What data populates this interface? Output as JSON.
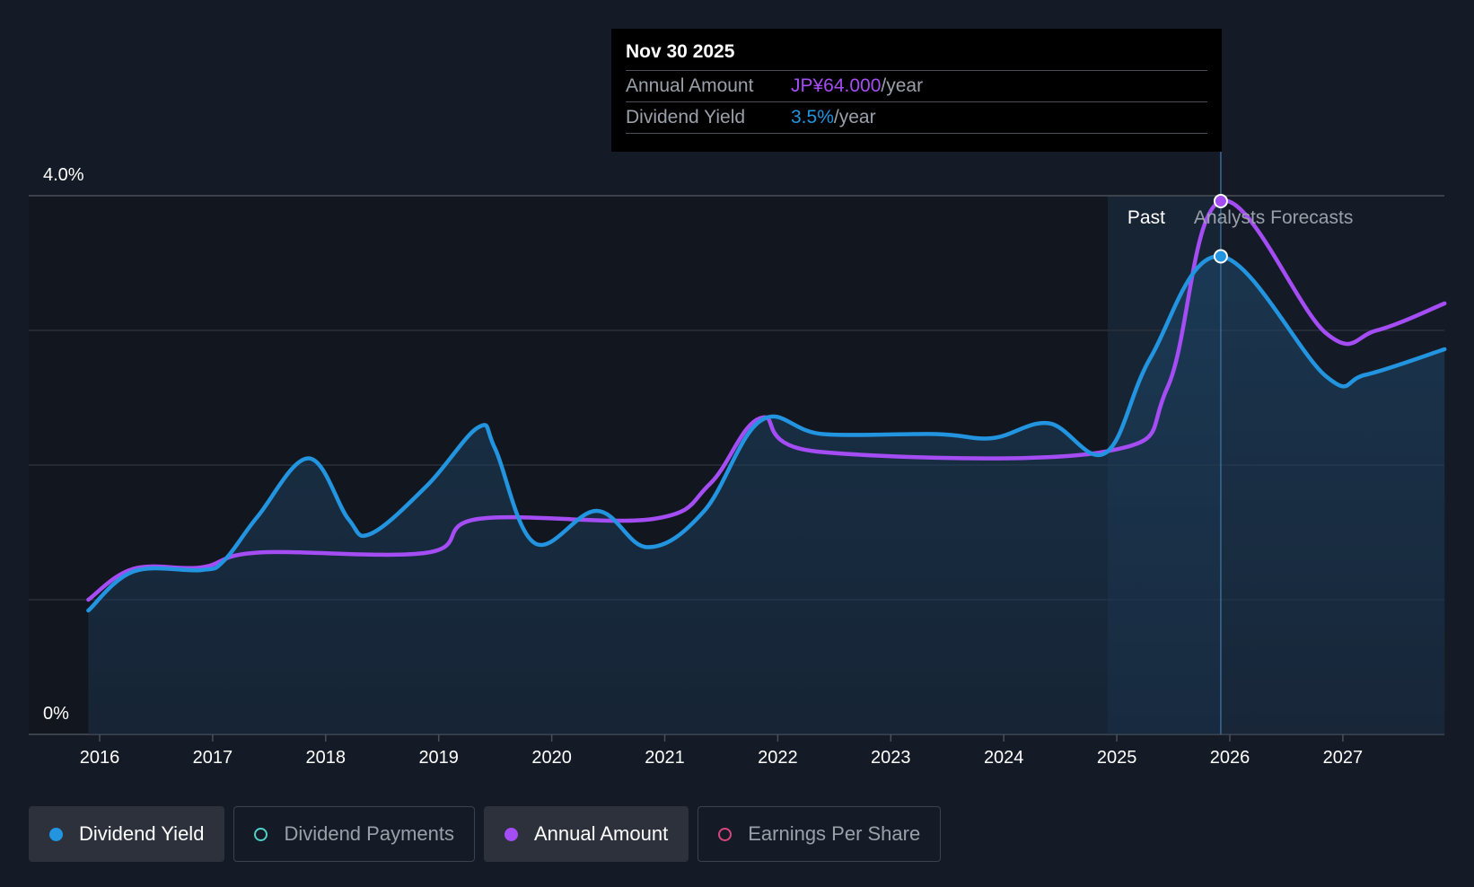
{
  "tooltip": {
    "date": "Nov 30 2025",
    "annual_label": "Annual Amount",
    "annual_value": "JP¥64.000",
    "yield_label": "Dividend Yield",
    "yield_value": "3.5%",
    "unit": "/year"
  },
  "legend": [
    {
      "label": "Dividend Yield",
      "color": "#2394df",
      "active": true,
      "filled": true
    },
    {
      "label": "Dividend Payments",
      "color": "#4fd1c5",
      "active": false,
      "filled": false
    },
    {
      "label": "Annual Amount",
      "color": "#a54df4",
      "active": true,
      "filled": true
    },
    {
      "label": "Earnings Per Share",
      "color": "#d6467e",
      "active": false,
      "filled": false
    }
  ],
  "chart_data": {
    "type": "line",
    "y_axis_labels": [
      "4.0%",
      "0%"
    ],
    "ylim": [
      0,
      4.0
    ],
    "xlim": [
      2015.9,
      2027.9
    ],
    "x_ticks": [
      2016,
      2017,
      2018,
      2019,
      2020,
      2021,
      2022,
      2023,
      2024,
      2025,
      2026,
      2027
    ],
    "x_tick_labels": [
      "2016",
      "2017",
      "2018",
      "2019",
      "2020",
      "2021",
      "2022",
      "2023",
      "2024",
      "2025",
      "2026",
      "2027"
    ],
    "region_labels": {
      "past": "Past",
      "forecast": "Analysts Forecasts"
    },
    "past_end_x": 2025.92,
    "forecast_shade_start_x": 2024.92,
    "highlight_x": 2025.92,
    "series": [
      {
        "name": "Dividend Yield",
        "color": "#2394df",
        "points": [
          [
            2015.9,
            0.92
          ],
          [
            2016.3,
            1.21
          ],
          [
            2016.9,
            1.22
          ],
          [
            2017.1,
            1.29
          ],
          [
            2017.4,
            1.62
          ],
          [
            2017.85,
            2.05
          ],
          [
            2018.2,
            1.6
          ],
          [
            2018.4,
            1.49
          ],
          [
            2018.9,
            1.85
          ],
          [
            2019.35,
            2.28
          ],
          [
            2019.5,
            2.12
          ],
          [
            2019.85,
            1.42
          ],
          [
            2020.4,
            1.66
          ],
          [
            2020.85,
            1.39
          ],
          [
            2021.35,
            1.66
          ],
          [
            2021.85,
            2.33
          ],
          [
            2022.4,
            2.23
          ],
          [
            2023.4,
            2.23
          ],
          [
            2023.9,
            2.2
          ],
          [
            2024.4,
            2.31
          ],
          [
            2024.9,
            2.09
          ],
          [
            2025.3,
            2.8
          ],
          [
            2025.92,
            3.55
          ],
          [
            2026.85,
            2.66
          ],
          [
            2027.2,
            2.67
          ],
          [
            2027.9,
            2.86
          ]
        ]
      },
      {
        "name": "Annual Amount",
        "color": "#a54df4",
        "points": [
          [
            2015.9,
            1.0
          ],
          [
            2016.3,
            1.23
          ],
          [
            2016.9,
            1.24
          ],
          [
            2017.4,
            1.35
          ],
          [
            2018.9,
            1.35
          ],
          [
            2019.35,
            1.6
          ],
          [
            2020.9,
            1.6
          ],
          [
            2021.4,
            1.86
          ],
          [
            2021.85,
            2.35
          ],
          [
            2022.35,
            2.1
          ],
          [
            2024.9,
            2.1
          ],
          [
            2025.45,
            2.58
          ],
          [
            2025.92,
            3.96
          ],
          [
            2026.85,
            2.98
          ],
          [
            2027.3,
            3.0
          ],
          [
            2027.9,
            3.2
          ]
        ]
      }
    ]
  }
}
